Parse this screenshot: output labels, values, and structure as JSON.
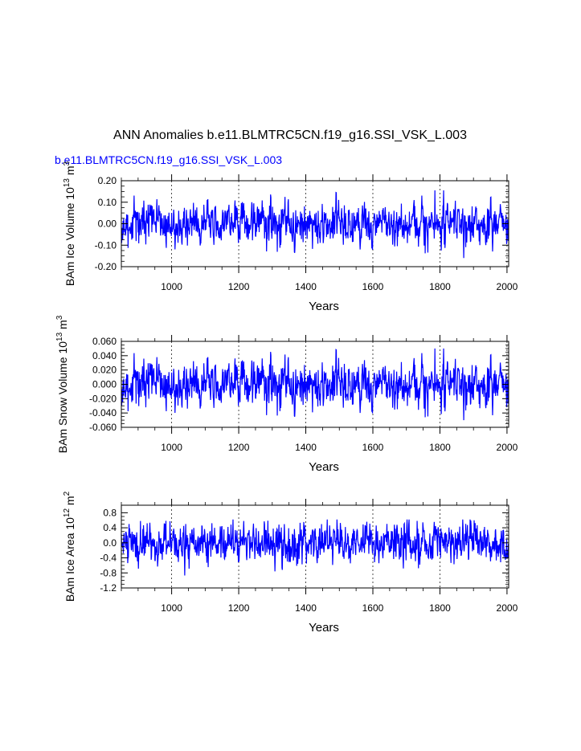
{
  "page": {
    "title": "ANN Anomalies b.e11.BLMTRC5CN.f19_g16.SSI_VSK_L.003",
    "case_label": "b.e11.BLMTRC5CN.f19_g16.SSI_VSK_L.003",
    "case_label_color": "#0000ff"
  },
  "chart_data": [
    {
      "type": "line",
      "name": "ice-volume",
      "ylabel_main": "BAm Ice Volume 10",
      "ylabel_exp": "13",
      "ylabel_unit": " m",
      "ylabel_unit_exp": "3",
      "xlabel": "Years",
      "xlim": [
        850,
        2005
      ],
      "ylim": [
        -0.2,
        0.2
      ],
      "yticks": [
        -0.2,
        -0.1,
        0.0,
        0.1,
        0.2
      ],
      "ytick_labels": [
        "-0.20",
        "-0.10",
        "0.00",
        "0.10",
        "0.20"
      ],
      "xticks": [
        1000,
        1200,
        1400,
        1600,
        1800,
        2000
      ],
      "xtick_labels": [
        "1000",
        "1200",
        "1400",
        "1600",
        "1800",
        "2000"
      ],
      "amp": 0.042,
      "min_clip": -0.16,
      "max_clip": 0.155,
      "seed": 11,
      "line_color": "#0000ff"
    },
    {
      "type": "line",
      "name": "snow-volume",
      "ylabel_main": "BAm Snow Volume 10",
      "ylabel_exp": "13",
      "ylabel_unit": " m",
      "ylabel_unit_exp": "3",
      "xlabel": "Years",
      "xlim": [
        850,
        2005
      ],
      "ylim": [
        -0.06,
        0.06
      ],
      "yticks": [
        -0.06,
        -0.04,
        -0.02,
        0.0,
        0.02,
        0.04,
        0.06
      ],
      "ytick_labels": [
        "-0.060",
        "-0.040",
        "-0.020",
        "0.000",
        "0.020",
        "0.040",
        "0.060"
      ],
      "xticks": [
        1000,
        1200,
        1400,
        1600,
        1800,
        2000
      ],
      "xtick_labels": [
        "1000",
        "1200",
        "1400",
        "1600",
        "1800",
        "2000"
      ],
      "amp": 0.014,
      "min_clip": -0.05,
      "max_clip": 0.05,
      "seed": 11,
      "line_color": "#0000ff"
    },
    {
      "type": "line",
      "name": "ice-area",
      "ylabel_main": "BAm Ice Area 10",
      "ylabel_exp": "12",
      "ylabel_unit": " m",
      "ylabel_unit_exp": "2",
      "xlabel": "Years",
      "xlim": [
        850,
        2005
      ],
      "ylim": [
        -1.2,
        1.0
      ],
      "yticks": [
        -1.2,
        -0.8,
        -0.4,
        0.0,
        0.4,
        0.8
      ],
      "ytick_labels": [
        "-1.2",
        "-0.8",
        "-0.4",
        "0.0",
        "0.4",
        "0.8"
      ],
      "xticks": [
        1000,
        1200,
        1400,
        1600,
        1800,
        2000
      ],
      "xtick_labels": [
        "1000",
        "1200",
        "1400",
        "1600",
        "1800",
        "2000"
      ],
      "amp": 0.24,
      "min_clip": -0.9,
      "max_clip": 0.62,
      "seed": 29,
      "line_color": "#0000ff"
    }
  ]
}
